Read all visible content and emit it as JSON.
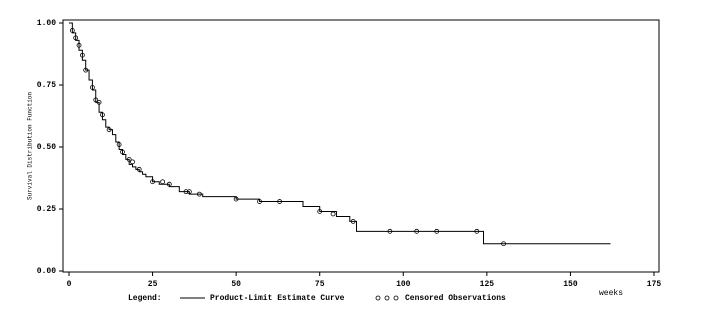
{
  "chart_data": {
    "type": "survival",
    "y_label": "Survival Distribution Function",
    "x_label": "weeks",
    "legend_title": "Legend:",
    "xlim": [
      0,
      175
    ],
    "xticks": [
      0,
      25,
      50,
      75,
      100,
      125,
      150,
      175
    ],
    "ylim": [
      0,
      1
    ],
    "yticks": [
      {
        "value": 0,
        "label": "0.00"
      },
      {
        "value": 0.25,
        "label": "0.25"
      },
      {
        "value": 0.5,
        "label": "0.50"
      },
      {
        "value": 0.75,
        "label": "0.75"
      },
      {
        "value": 1,
        "label": "1.00"
      }
    ],
    "series": [
      {
        "name": "Product-Limit Estimate Curve",
        "color": "#000000",
        "x": [
          0,
          1,
          2,
          3,
          4,
          5,
          6,
          7,
          8,
          9,
          10,
          11,
          12,
          13,
          14,
          15,
          16,
          17,
          18,
          19,
          20,
          21,
          22,
          23,
          25,
          27,
          30,
          33,
          36,
          40,
          50,
          57,
          60,
          70,
          75,
          80,
          84,
          86,
          100,
          110,
          124,
          162
        ],
        "values": [
          1.0,
          0.96,
          0.93,
          0.89,
          0.85,
          0.81,
          0.77,
          0.73,
          0.68,
          0.64,
          0.61,
          0.58,
          0.57,
          0.55,
          0.52,
          0.49,
          0.47,
          0.45,
          0.43,
          0.42,
          0.41,
          0.4,
          0.39,
          0.38,
          0.36,
          0.35,
          0.34,
          0.32,
          0.31,
          0.3,
          0.29,
          0.28,
          0.28,
          0.26,
          0.24,
          0.22,
          0.2,
          0.16,
          0.16,
          0.16,
          0.11,
          0.11
        ]
      },
      {
        "name": "Censored Observations",
        "color": "#000000",
        "x": [
          1,
          2,
          3,
          4,
          5,
          7,
          8,
          9,
          10,
          12,
          15,
          16,
          18,
          19,
          21,
          25,
          28,
          30,
          35,
          36,
          39,
          50,
          57,
          63,
          75,
          79,
          85,
          96,
          104,
          110,
          122,
          130
        ],
        "values": [
          0.97,
          0.94,
          0.91,
          0.87,
          0.81,
          0.74,
          0.69,
          0.68,
          0.63,
          0.57,
          0.51,
          0.48,
          0.45,
          0.44,
          0.41,
          0.36,
          0.36,
          0.35,
          0.32,
          0.32,
          0.31,
          0.29,
          0.28,
          0.28,
          0.24,
          0.23,
          0.2,
          0.16,
          0.16,
          0.16,
          0.16,
          0.11
        ]
      }
    ]
  }
}
